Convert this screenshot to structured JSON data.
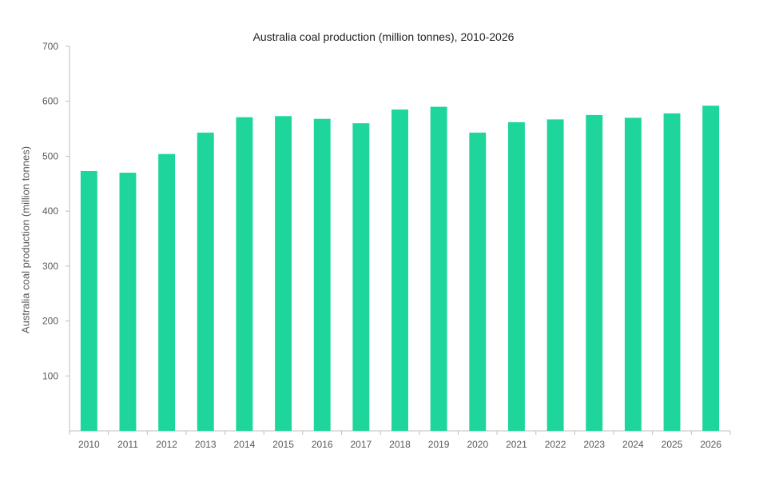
{
  "chart_data": {
    "type": "bar",
    "title": "Australia coal production (million tonnes), 2010-2026",
    "xlabel": "",
    "ylabel": "Australia coal production  (million tonnes)",
    "categories": [
      "2010",
      "2011",
      "2012",
      "2013",
      "2014",
      "2015",
      "2016",
      "2017",
      "2018",
      "2019",
      "2020",
      "2021",
      "2022",
      "2023",
      "2024",
      "2025",
      "2026"
    ],
    "values": [
      473,
      470,
      504,
      543,
      571,
      573,
      568,
      560,
      585,
      590,
      543,
      562,
      567,
      575,
      570,
      578,
      592
    ],
    "ylim": [
      0,
      700
    ],
    "yticks": [
      100,
      200,
      300,
      400,
      500,
      600,
      700
    ],
    "grid": false,
    "legend": "none",
    "bar_color": "#1ED69B",
    "axis_color": "#BFBFBF",
    "tick_label_color": "#595959"
  }
}
